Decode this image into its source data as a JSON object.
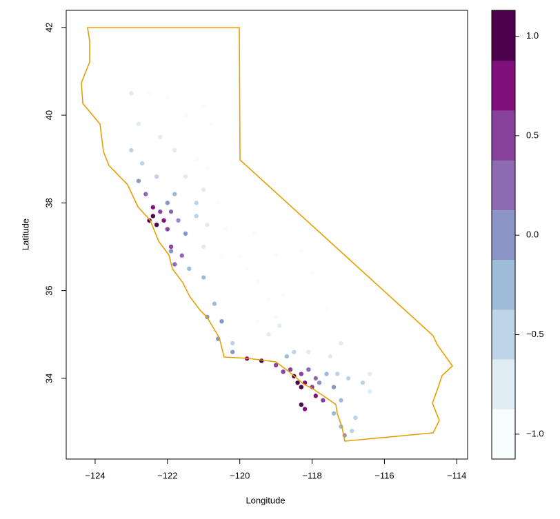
{
  "chart_data": {
    "type": "scatter",
    "xlabel": "Longitude",
    "ylabel": "Latitude",
    "xlim": [
      -124.8,
      -113.7
    ],
    "ylim": [
      32.16,
      42.39
    ],
    "xticks": [
      {
        "value": -124,
        "label": "−124"
      },
      {
        "value": -122,
        "label": "−122"
      },
      {
        "value": -120,
        "label": "−120"
      },
      {
        "value": -118,
        "label": "−118"
      },
      {
        "value": -116,
        "label": "−116"
      },
      {
        "value": -114,
        "label": "−114"
      }
    ],
    "yticks": [
      34,
      36,
      38,
      40,
      42
    ],
    "x": [
      -123.0,
      -122.5,
      -122.0,
      -121.5,
      -121.0,
      -120.8,
      -122.8,
      -122.2,
      -121.8,
      -121.2,
      -120.9,
      -123.0,
      -122.7,
      -122.3,
      -121.5,
      -121.0,
      -120.6,
      -122.8,
      -122.6,
      -122.4,
      -122.4,
      -122.3,
      -122.1,
      -122.0,
      -121.9,
      -121.7,
      -121.5,
      -121.2,
      -121.0,
      -121.9,
      -121.8,
      -121.6,
      -121.4,
      -121.0,
      -120.7,
      -120.5,
      -120.9,
      -120.5,
      -120.0,
      -119.8,
      -119.5,
      -119.2,
      -119.0,
      -119.6,
      -119.0,
      -118.8,
      -120.2,
      -120.2,
      -119.8,
      -119.4,
      -119.0,
      -118.8,
      -118.5,
      -118.4,
      -118.3,
      -118.2,
      -118.0,
      -117.9,
      -117.7,
      -118.3,
      -118.1,
      -117.9,
      -117.6,
      -117.3,
      -117.0,
      -116.6,
      -116.4,
      -117.4,
      -117.2,
      -117.4,
      -117.2,
      -117.1,
      -116.9,
      -116.8,
      -118.5,
      -118.1,
      -117.5,
      -118.7,
      -118.3,
      -118.2,
      -119.5,
      -119.2,
      -118.9,
      -120.4,
      -120.9,
      -121.2,
      -121.8,
      -122.0,
      -120.2,
      -118.3,
      -118.0,
      -117.6,
      -117.2,
      -116.4,
      -122.2,
      -121.9,
      -122.5,
      -120.6,
      -118.6,
      -117.8
    ],
    "y": [
      40.5,
      40.5,
      40.4,
      40.0,
      40.2,
      39.8,
      39.8,
      39.5,
      39.2,
      39.0,
      38.8,
      39.2,
      38.9,
      38.6,
      38.6,
      38.3,
      38.0,
      38.5,
      38.2,
      37.9,
      37.7,
      37.5,
      37.6,
      37.4,
      37.8,
      37.6,
      37.3,
      37.7,
      37.0,
      37.0,
      36.6,
      36.8,
      36.5,
      36.3,
      35.7,
      35.3,
      35.4,
      36.8,
      36.8,
      36.5,
      36.2,
      35.8,
      35.4,
      37.3,
      36.8,
      35.9,
      34.8,
      34.6,
      34.45,
      34.4,
      34.3,
      34.15,
      34.05,
      33.9,
      33.8,
      33.9,
      33.8,
      33.6,
      33.5,
      34.1,
      34.2,
      34.0,
      34.1,
      34.1,
      34.0,
      33.9,
      33.7,
      33.8,
      33.5,
      33.2,
      32.9,
      32.7,
      32.8,
      33.1,
      34.6,
      34.6,
      34.5,
      34.5,
      33.4,
      33.3,
      35.3,
      35.0,
      35.2,
      37.4,
      37.5,
      38.0,
      38.2,
      38.0,
      38.9,
      36.9,
      36.4,
      35.6,
      34.8,
      34.1,
      37.8,
      36.9,
      37.6,
      34.9,
      34.2,
      33.9
    ],
    "values": [
      -0.8,
      -0.9,
      -0.9,
      -0.95,
      -1.0,
      -1.0,
      -0.8,
      -0.8,
      -0.85,
      -0.9,
      -0.9,
      -0.5,
      -0.4,
      -0.6,
      -0.8,
      -0.85,
      -0.9,
      0.1,
      0.3,
      0.8,
      1.05,
      1.0,
      0.7,
      0.6,
      0.2,
      0.0,
      -0.1,
      -0.5,
      -0.7,
      0.4,
      0.3,
      0.15,
      -0.2,
      -0.3,
      -0.2,
      -0.1,
      0.0,
      -0.9,
      -1.0,
      -1.0,
      -1.0,
      -1.0,
      -0.95,
      -1.0,
      -1.0,
      -0.9,
      -0.4,
      0.0,
      0.8,
      0.9,
      0.6,
      0.5,
      0.9,
      1.1,
      1.05,
      0.8,
      0.6,
      0.7,
      0.4,
      0.5,
      0.3,
      0.15,
      -0.2,
      -0.4,
      -0.5,
      -0.6,
      -0.7,
      -0.1,
      -0.3,
      -0.2,
      -0.3,
      0.1,
      -0.4,
      -0.5,
      -0.5,
      -0.7,
      -0.8,
      -0.3,
      0.9,
      0.85,
      -0.9,
      -0.7,
      -0.8,
      -0.9,
      -0.7,
      -0.6,
      -0.3,
      0.0,
      -0.9,
      -1.0,
      -0.95,
      -0.9,
      -0.8,
      -0.85,
      0.4,
      0.1,
      0.9,
      -0.1,
      0.4,
      0.0
    ],
    "colorbar": {
      "breaks": [
        -1.125,
        -0.875,
        -0.625,
        -0.375,
        -0.125,
        0.125,
        0.375,
        0.625,
        0.875,
        1.13
      ],
      "colors": [
        "#f7fcfd",
        "#e0ecf4",
        "#bfd3e6",
        "#9ebcda",
        "#8c96c6",
        "#8c6bb1",
        "#88419d",
        "#810f7c",
        "#4d004b"
      ],
      "ticks": [
        {
          "value": -1.0,
          "label": "−1.0"
        },
        {
          "value": -0.5,
          "label": "−0.5"
        },
        {
          "value": 0.0,
          "label": "0.0"
        },
        {
          "value": 0.5,
          "label": "0.5"
        },
        {
          "value": 1.0,
          "label": "1.0"
        }
      ]
    },
    "outline_color": "#e69f00"
  }
}
